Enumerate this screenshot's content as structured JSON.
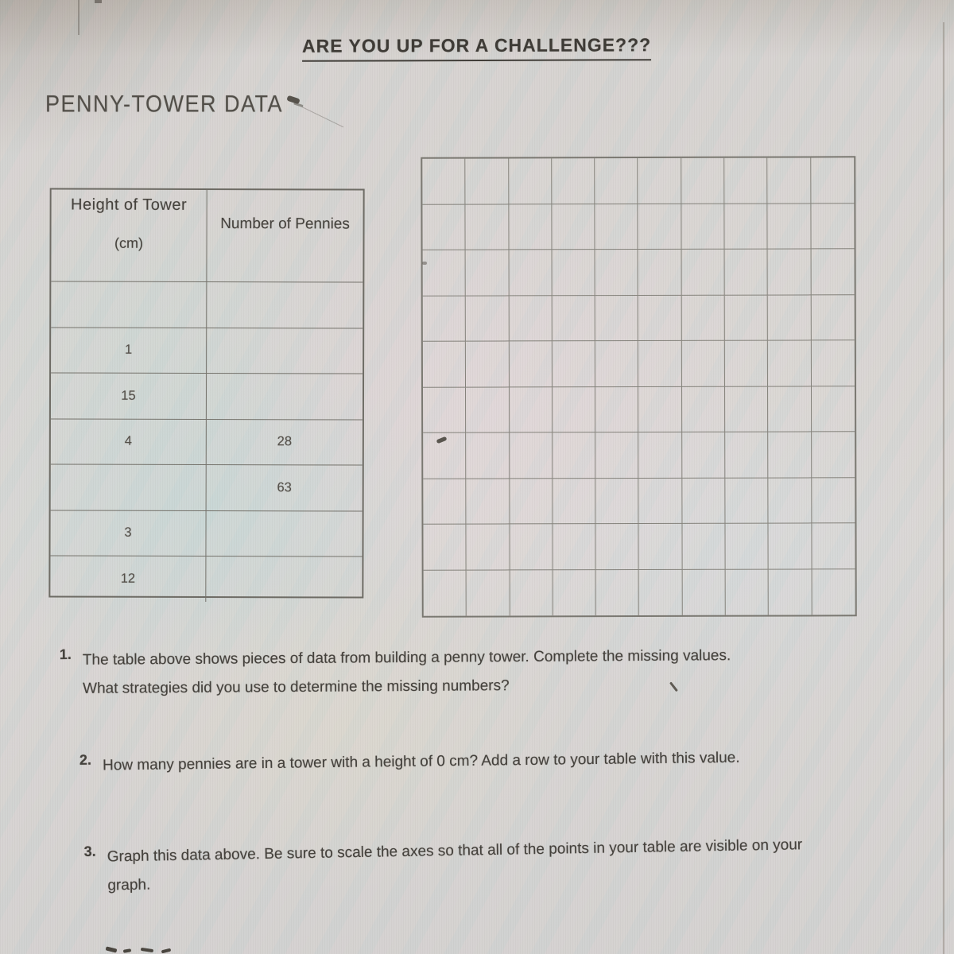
{
  "page": {
    "title": "ARE YOU UP FOR A CHALLENGE???",
    "subtitle": "PENNY-TOWER DATA"
  },
  "table": {
    "header": {
      "col1_line1": "Height of Tower",
      "col1_line2": "(cm)",
      "col2": "Number of Pennies"
    },
    "rows": [
      {
        "height": "",
        "pennies": ""
      },
      {
        "height": "1",
        "pennies": ""
      },
      {
        "height": "15",
        "pennies": ""
      },
      {
        "height": "4",
        "pennies": "28"
      },
      {
        "height": "",
        "pennies": "63"
      },
      {
        "height": "3",
        "pennies": ""
      },
      {
        "height": "12",
        "pennies": ""
      }
    ]
  },
  "grid": {
    "rows": 10,
    "cols": 10
  },
  "questions": [
    {
      "number": "1.",
      "line1": "The table above shows pieces of data from building a penny tower.  Complete the missing values.",
      "line2": "What strategies did you use to determine the missing numbers?"
    },
    {
      "number": "2.",
      "line1": "How many pennies are in a tower with a height of 0 cm?  Add a row to your table with this value.",
      "line2": ""
    },
    {
      "number": "3.",
      "line1": "Graph this data above.  Be sure to scale the axes so that all of the points in your table are visible on your",
      "line2": "graph."
    }
  ],
  "colors": {
    "ink": "#3e3b36",
    "table_line": "#75736c",
    "grid_line": "#85837c",
    "paper": "#d6d3d1"
  }
}
